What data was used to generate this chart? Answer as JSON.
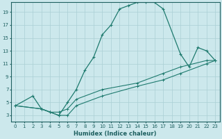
{
  "title": "",
  "xlabel": "Humidex (Indice chaleur)",
  "ylabel": "",
  "bg_color": "#cce8ec",
  "line_color": "#1e7a6e",
  "grid_color": "#aacfd4",
  "axis_color": "#1e6060",
  "xlim": [
    -0.5,
    23.5
  ],
  "ylim": [
    2,
    20.5
  ],
  "xticks": [
    0,
    1,
    2,
    3,
    4,
    5,
    6,
    7,
    8,
    9,
    10,
    11,
    12,
    13,
    14,
    15,
    16,
    17,
    18,
    19,
    20,
    21,
    22,
    23
  ],
  "yticks": [
    3,
    5,
    7,
    9,
    11,
    13,
    15,
    17,
    19
  ],
  "curve1_x": [
    0,
    2,
    3,
    4,
    5,
    6,
    7,
    8,
    9,
    10,
    11,
    12,
    13,
    14,
    15,
    16,
    17,
    19,
    20,
    21,
    22,
    23
  ],
  "curve1_y": [
    4.5,
    6,
    4,
    3.5,
    3,
    5,
    7,
    10,
    12,
    15.5,
    17,
    19.5,
    20,
    20.5,
    20.5,
    20.5,
    19.5,
    12.5,
    10.5,
    13.5,
    13,
    11.5
  ],
  "curve2_x": [
    0,
    3,
    4,
    5,
    6,
    7,
    10,
    14,
    17,
    19,
    22,
    23
  ],
  "curve2_y": [
    4.5,
    4,
    3.5,
    3,
    3,
    4.5,
    6,
    7.5,
    8.5,
    9.5,
    11,
    11.5
  ],
  "curve3_x": [
    0,
    3,
    4,
    5,
    6,
    7,
    10,
    14,
    17,
    19,
    22,
    23
  ],
  "curve3_y": [
    4.5,
    4,
    3.5,
    3.5,
    4,
    5.5,
    7,
    8,
    9.5,
    10.5,
    11.5,
    11.5
  ]
}
